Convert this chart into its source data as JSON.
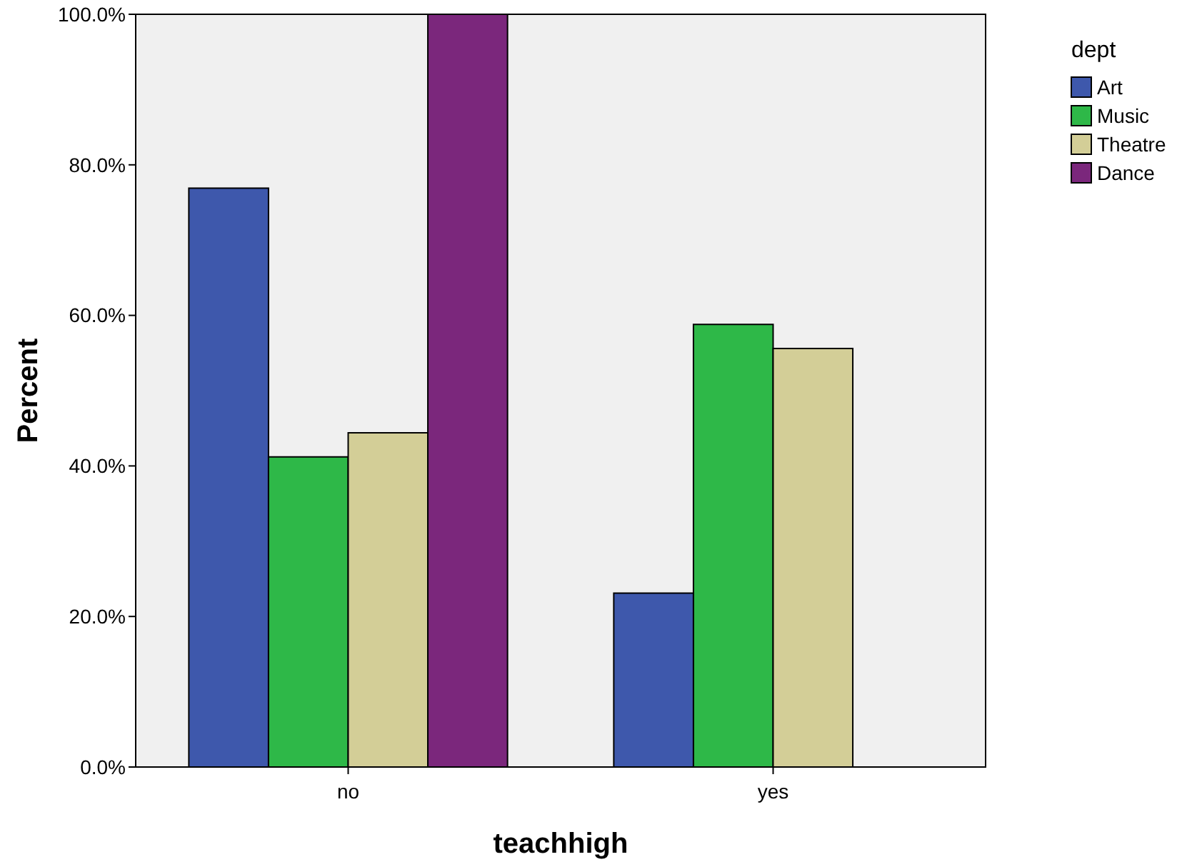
{
  "chart_data": {
    "type": "bar",
    "xlabel": "teachhigh",
    "ylabel": "Percent",
    "legend_title": "dept",
    "categories": [
      "no",
      "yes"
    ],
    "series": [
      {
        "name": "Art",
        "color": "#3e58ac",
        "values": [
          76.9,
          23.1
        ]
      },
      {
        "name": "Music",
        "color": "#2eb848",
        "values": [
          41.2,
          58.8
        ]
      },
      {
        "name": "Theatre",
        "color": "#d3ce97",
        "values": [
          44.4,
          55.6
        ]
      },
      {
        "name": "Dance",
        "color": "#7b277c",
        "values": [
          100,
          0
        ]
      }
    ],
    "ylim": [
      0,
      100
    ],
    "yticks": [
      {
        "value": 0,
        "label": "0.0%"
      },
      {
        "value": 20,
        "label": "20.0%"
      },
      {
        "value": 40,
        "label": "40.0%"
      },
      {
        "value": 60,
        "label": "60.0%"
      },
      {
        "value": 80,
        "label": "80.0%"
      },
      {
        "value": 100,
        "label": "100.0%"
      }
    ],
    "grid": false,
    "legend": "top right"
  }
}
